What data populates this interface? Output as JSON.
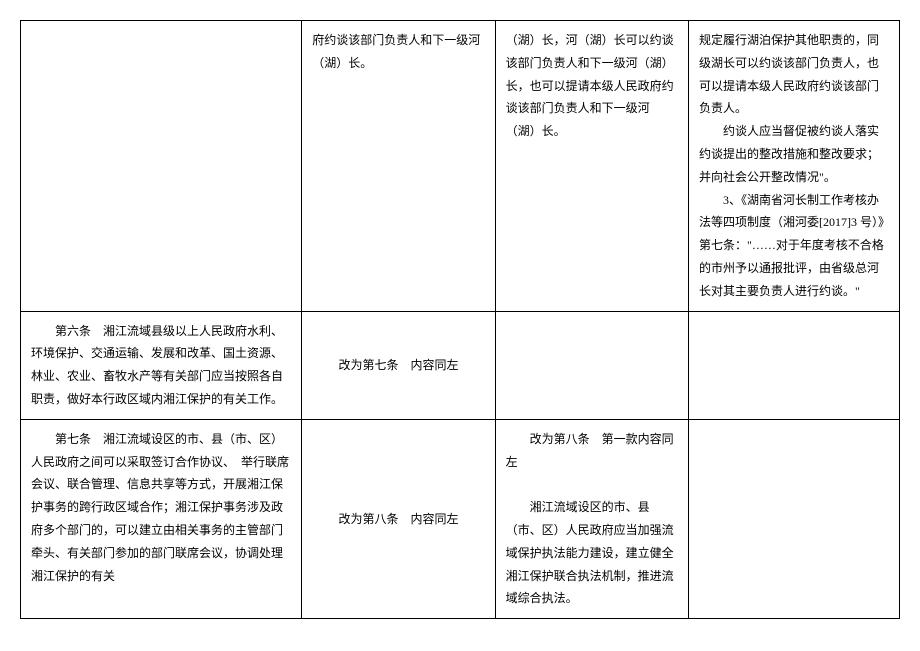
{
  "table": {
    "rows": [
      {
        "col1": "",
        "col2": "府约谈该部门负责人和下一级河（湖）长。",
        "col3": "（湖）长，河（湖）长可以约谈该部门负责人和下一级河（湖）长，也可以提请本级人民政府约谈该部门负责人和下一级河（湖）长。",
        "col4_p1": "规定履行湖泊保护其他职责的，同级湖长可以约谈该部门负责人，也可以提请本级人民政府约谈该部门负责人。",
        "col4_p2": "约谈人应当督促被约谈人落实约谈提出的整改措施和整改要求；并向社会公开整改情况\"。",
        "col4_p3": "3、《湖南省河长制工作考核办法等四项制度（湘河委[2017]3 号）》第七条：\"……对于年度考核不合格的市州予以通报批评，由省级总河长对其主要负责人进行约谈。\""
      },
      {
        "col1_p1": "第六条　湘江流域县级以上人民政府水利、环境保护、交通运输、发展和改革、国土资源、林业、农业、畜牧水产等有关部门应当按照各自职责，做好本行政区域内湘江保护的有关工作。",
        "col2": "改为第七条　内容同左",
        "col3": "",
        "col4": ""
      },
      {
        "col1_p1": "第七条　湘江流域设区的市、县（市、区）人民政府之间可以采取签订合作协议、　举行联席会议、联合管理、信息共享等方式，开展湘江保护事务的跨行政区域合作；湘江保护事务涉及政府多个部门的，可以建立由相关事务的主管部门牵头、有关部门参加的部门联席会议，协调处理湘江保护的有关",
        "col2": "改为第八条　内容同左",
        "col3_p1": "改为第八条　第一款内容同左",
        "col3_p2": "湘江流域设区的市、县（市、区）人民政府应当加强流域保护执法能力建设，建立健全湘江保护联合执法机制，推进流域综合执法。",
        "col4": ""
      }
    ]
  }
}
